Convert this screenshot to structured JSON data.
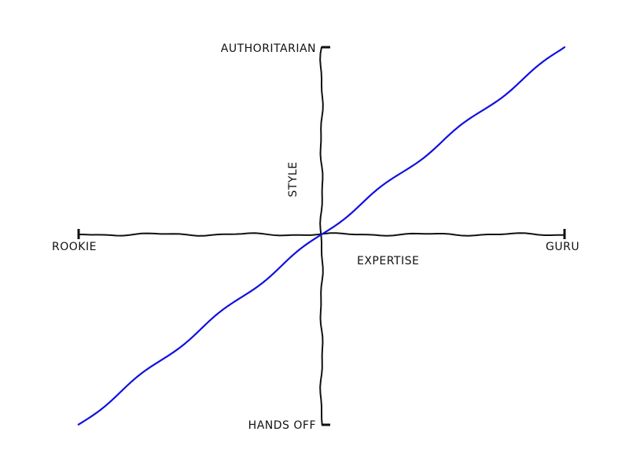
{
  "chart_data": {
    "type": "line",
    "title": "",
    "xlabel": "EXPERTISE",
    "ylabel": "STYLE",
    "xlim": [
      -1,
      1
    ],
    "ylim": [
      -1,
      1
    ],
    "grid": false,
    "x_tick_labels": {
      "min": "ROOKIE",
      "max": "GURU"
    },
    "y_tick_labels": {
      "min": "HANDS OFF",
      "max": "AUTHORITARIAN"
    },
    "series": [
      {
        "color": "#1010e0",
        "x": [
          -1,
          -0.8,
          -0.6,
          -0.4,
          -0.2,
          0,
          0.2,
          0.4,
          0.6,
          0.8,
          1
        ],
        "y": [
          -1,
          -0.8,
          -0.6,
          -0.4,
          -0.2,
          0,
          0.2,
          0.4,
          0.6,
          0.8,
          1
        ]
      }
    ],
    "colors": {
      "axis": "#111111",
      "line": "#1010e0"
    }
  }
}
